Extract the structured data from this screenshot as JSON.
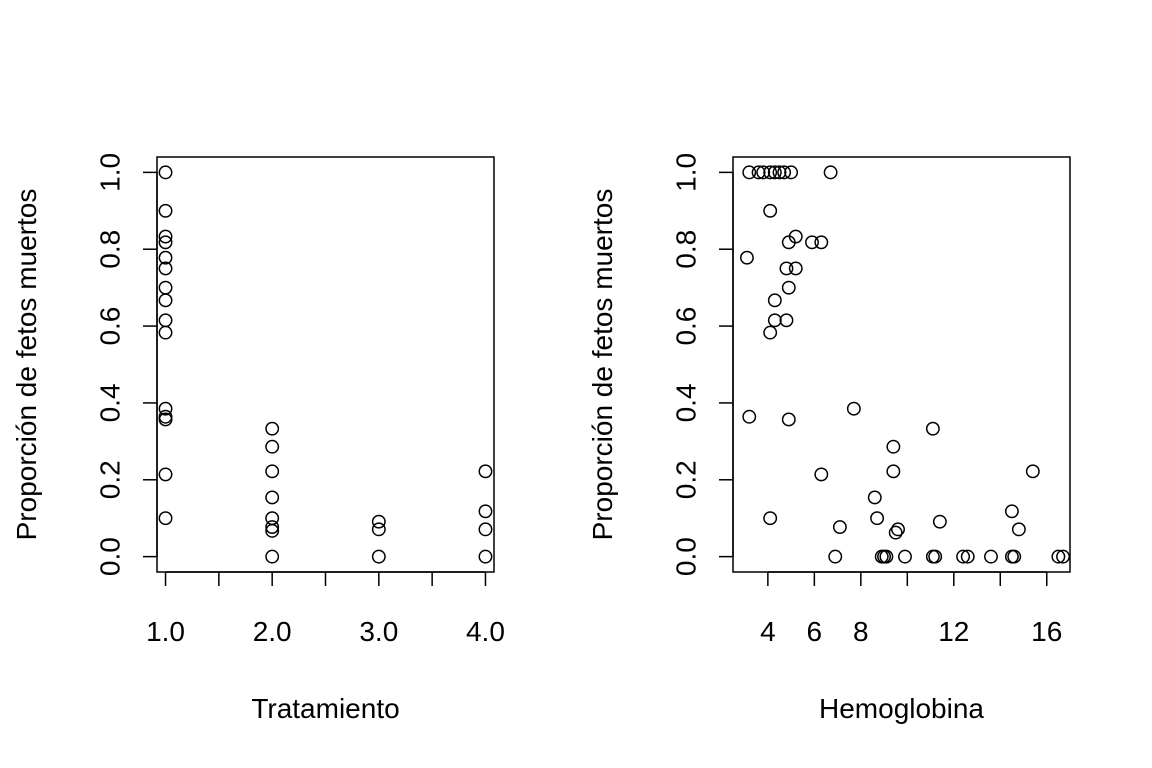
{
  "chart_data": [
    {
      "type": "scatter",
      "title": "",
      "xlabel": "Tratamiento",
      "ylabel": "Proporción de fetos muertos",
      "xlim": [
        0.92,
        4.08
      ],
      "ylim": [
        -0.04,
        1.04
      ],
      "x_ticks": [
        1.0,
        1.5,
        2.0,
        2.5,
        3.0,
        3.5,
        4.0
      ],
      "x_tick_labels": [
        "1.0",
        "",
        "2.0",
        "",
        "3.0",
        "",
        "4.0"
      ],
      "y_ticks": [
        0.0,
        0.2,
        0.4,
        0.6,
        0.8,
        1.0
      ],
      "y_tick_labels": [
        "0.0",
        "0.2",
        "0.4",
        "0.6",
        "0.8",
        "1.0"
      ],
      "marker": "open-circle",
      "grid": false,
      "points": [
        [
          1,
          1.0
        ],
        [
          1,
          0.9
        ],
        [
          1,
          0.833
        ],
        [
          1,
          0.818
        ],
        [
          1,
          0.778
        ],
        [
          1,
          0.75
        ],
        [
          1,
          0.7
        ],
        [
          1,
          0.667
        ],
        [
          1,
          0.615
        ],
        [
          1,
          0.583
        ],
        [
          1,
          0.385
        ],
        [
          1,
          0.364
        ],
        [
          1,
          0.357
        ],
        [
          1,
          0.214
        ],
        [
          1,
          0.1
        ],
        [
          2,
          0.333
        ],
        [
          2,
          0.286
        ],
        [
          2,
          0.222
        ],
        [
          2,
          0.154
        ],
        [
          2,
          0.1
        ],
        [
          2,
          0.077
        ],
        [
          2,
          0.067
        ],
        [
          2,
          0.0
        ],
        [
          3,
          0.091
        ],
        [
          3,
          0.071
        ],
        [
          3,
          0.0
        ],
        [
          4,
          0.222
        ],
        [
          4,
          0.118
        ],
        [
          4,
          0.071
        ],
        [
          4,
          0.0
        ]
      ]
    },
    {
      "type": "scatter",
      "title": "",
      "xlabel": "Hemoglobina",
      "ylabel": "Proporción de fetos muertos",
      "xlim": [
        2.5,
        17.0
      ],
      "ylim": [
        -0.04,
        1.04
      ],
      "x_ticks": [
        4,
        6,
        8,
        10,
        12,
        14,
        16
      ],
      "x_tick_labels": [
        "4",
        "6",
        "8",
        "",
        "12",
        "",
        "16"
      ],
      "y_ticks": [
        0.0,
        0.2,
        0.4,
        0.6,
        0.8,
        1.0
      ],
      "y_tick_labels": [
        "0.0",
        "0.2",
        "0.4",
        "0.6",
        "0.8",
        "1.0"
      ],
      "marker": "open-circle",
      "grid": false,
      "points": [
        [
          3.2,
          1.0
        ],
        [
          3.6,
          1.0
        ],
        [
          3.8,
          1.0
        ],
        [
          4.1,
          1.0
        ],
        [
          4.3,
          1.0
        ],
        [
          4.5,
          1.0
        ],
        [
          4.7,
          1.0
        ],
        [
          5.0,
          1.0
        ],
        [
          6.7,
          1.0
        ],
        [
          4.1,
          0.9
        ],
        [
          5.2,
          0.833
        ],
        [
          4.9,
          0.818
        ],
        [
          5.9,
          0.818
        ],
        [
          6.3,
          0.818
        ],
        [
          3.1,
          0.778
        ],
        [
          4.8,
          0.75
        ],
        [
          5.2,
          0.75
        ],
        [
          4.9,
          0.7
        ],
        [
          4.3,
          0.667
        ],
        [
          4.3,
          0.615
        ],
        [
          4.8,
          0.615
        ],
        [
          4.1,
          0.583
        ],
        [
          7.7,
          0.385
        ],
        [
          3.2,
          0.364
        ],
        [
          4.9,
          0.357
        ],
        [
          11.1,
          0.333
        ],
        [
          9.4,
          0.286
        ],
        [
          9.4,
          0.222
        ],
        [
          15.4,
          0.222
        ],
        [
          6.3,
          0.214
        ],
        [
          8.6,
          0.154
        ],
        [
          14.5,
          0.118
        ],
        [
          4.1,
          0.1
        ],
        [
          8.7,
          0.1
        ],
        [
          11.4,
          0.091
        ],
        [
          7.1,
          0.077
        ],
        [
          9.6,
          0.071
        ],
        [
          14.8,
          0.071
        ],
        [
          9.5,
          0.0625
        ],
        [
          6.9,
          0.0
        ],
        [
          8.9,
          0.0
        ],
        [
          9.0,
          0.0
        ],
        [
          9.1,
          0.0
        ],
        [
          9.9,
          0.0
        ],
        [
          11.1,
          0.0
        ],
        [
          11.2,
          0.0
        ],
        [
          12.4,
          0.0
        ],
        [
          12.6,
          0.0
        ],
        [
          13.6,
          0.0
        ],
        [
          14.5,
          0.0
        ],
        [
          14.6,
          0.0
        ],
        [
          16.5,
          0.0
        ],
        [
          16.7,
          0.0
        ]
      ]
    }
  ]
}
